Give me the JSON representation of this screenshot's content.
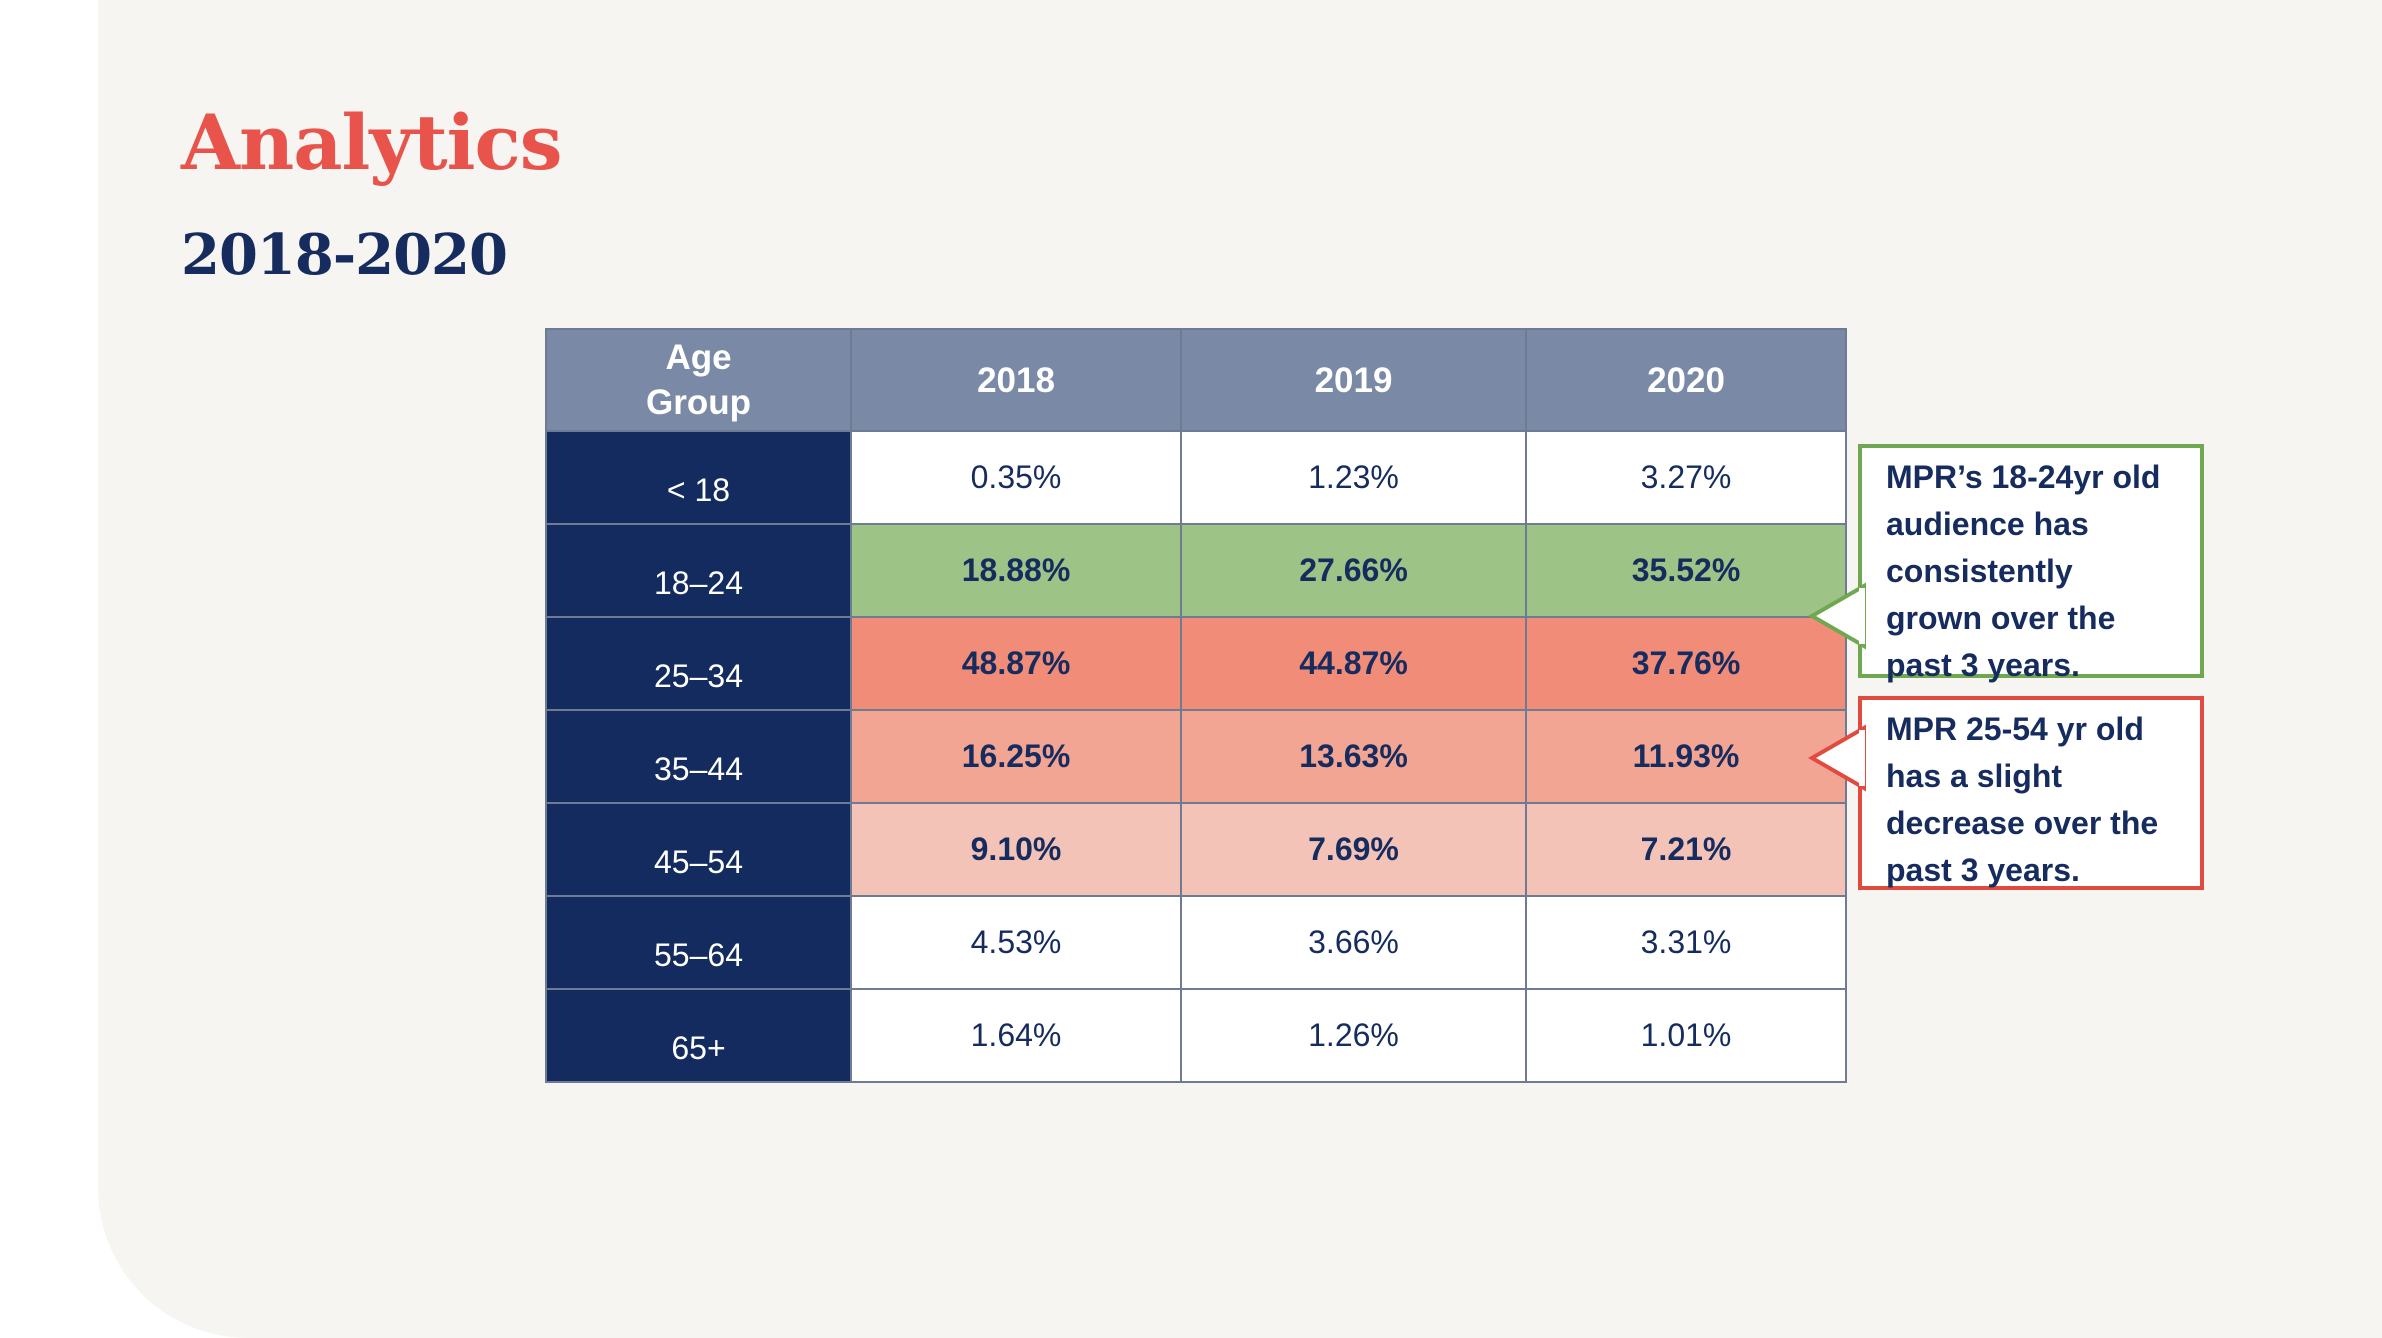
{
  "title": "Analytics",
  "subtitle": "2018-2020",
  "colors": {
    "title": "#e8544b",
    "heading": "#162b5e",
    "header_bg": "#7a89a6",
    "age_bg": "#142b5f",
    "green": "#9dc386",
    "red_strong": "#f08c78",
    "red_mid": "#f2a593",
    "red_light": "#f4c3b7",
    "callout_green": "#6fa84f",
    "callout_red": "#e04a3f"
  },
  "chart_data": {
    "type": "table",
    "columns": [
      "Age\nGroup",
      "2018",
      "2019",
      "2020"
    ],
    "rows": [
      {
        "label": "< 18",
        "values": [
          "0.35%",
          "1.23%",
          "3.27%"
        ],
        "fill": "#ffffff",
        "bold": false
      },
      {
        "label": "18–24",
        "values": [
          "18.88%",
          "27.66%",
          "35.52%"
        ],
        "fill": "#9dc386",
        "bold": true
      },
      {
        "label": "25–34",
        "values": [
          "48.87%",
          "44.87%",
          "37.76%"
        ],
        "fill": "#f08c78",
        "bold": true
      },
      {
        "label": "35–44",
        "values": [
          "16.25%",
          "13.63%",
          "11.93%"
        ],
        "fill": "#f2a593",
        "bold": true
      },
      {
        "label": "45–54",
        "values": [
          "9.10%",
          "7.69%",
          "7.21%"
        ],
        "fill": "#f4c3b7",
        "bold": true
      },
      {
        "label": "55–64",
        "values": [
          "4.53%",
          "3.66%",
          "3.31%"
        ],
        "fill": "#ffffff",
        "bold": false
      },
      {
        "label": "65+",
        "values": [
          "1.64%",
          "1.26%",
          "1.01%"
        ],
        "fill": "#ffffff",
        "bold": false
      }
    ],
    "annotations": [
      {
        "text": "MPR’s 18-24yr old audience has consistently grown over the past 3 years.",
        "color": "#6fa84f"
      },
      {
        "text": "MPR 25-54 yr old has a slight decrease over the past 3 years.",
        "color": "#e04a3f"
      }
    ]
  }
}
